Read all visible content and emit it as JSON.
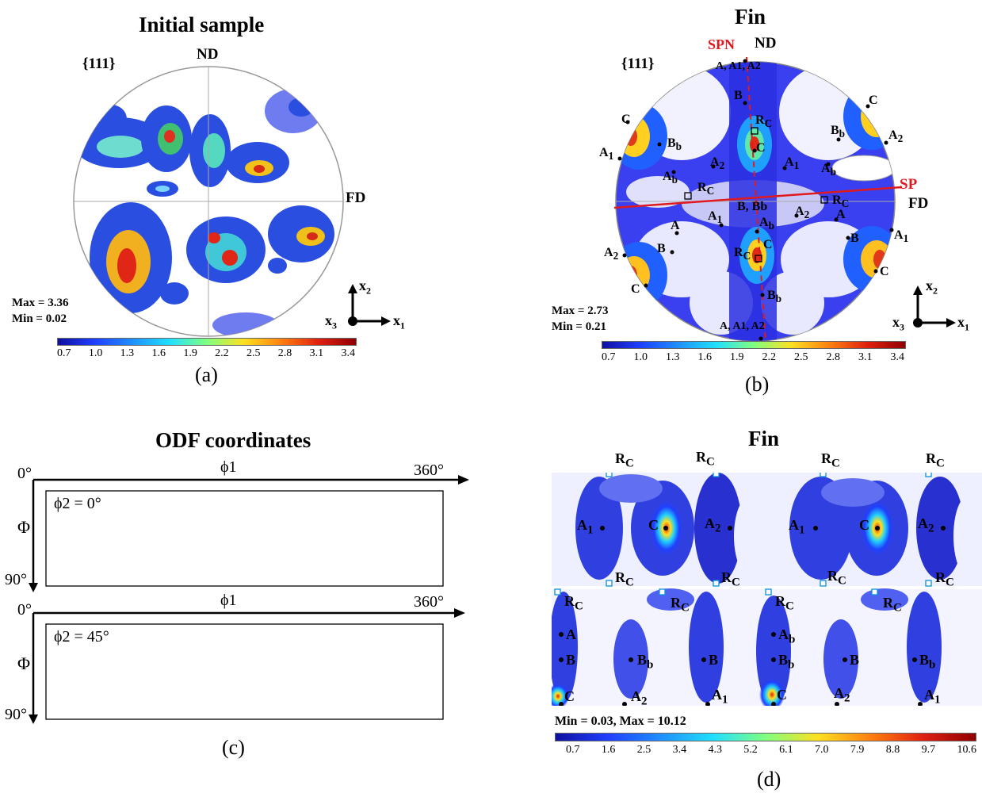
{
  "panel_a": {
    "title": "Initial sample",
    "family": "{111}",
    "nd": "ND",
    "fd": "FD",
    "max_label": "Max = 3.36",
    "min_label": "Min = 0.02",
    "caption": "(a)",
    "scale_ticks": [
      "0.7",
      "1.0",
      "1.3",
      "1.6",
      "1.9",
      "2.2",
      "2.5",
      "2.8",
      "3.1",
      "3.4"
    ],
    "axes": {
      "x2": "x",
      "x2_sub": "2",
      "x1": "x",
      "x1_sub": "1",
      "x3": "x",
      "x3_sub": "3"
    }
  },
  "panel_b": {
    "title": "Fin",
    "family": "{111}",
    "nd": "ND",
    "fd": "FD",
    "spn": "SPN",
    "sp": "SP",
    "max_label": "Max = 2.73",
    "min_label": "Min = 0.21",
    "caption": "(b)",
    "scale_ticks": [
      "0.7",
      "1.0",
      "1.3",
      "1.6",
      "1.9",
      "2.2",
      "2.5",
      "2.8",
      "3.1",
      "3.4"
    ],
    "axes": {
      "x2": "x",
      "x2_sub": "2",
      "x1": "x",
      "x1_sub": "1",
      "x3": "x",
      "x3_sub": "3"
    },
    "labels": {
      "a": "A",
      "a1": "A",
      "a2": "A",
      "ab": "A",
      "b": "B",
      "bb": "B",
      "c": "C",
      "rc": "R",
      "sub1": "1",
      "sub2": "2",
      "subb": "b",
      "subc": "C",
      "top_pair": "A, A1, A2",
      "bottom_pair": "A, A1, A2",
      "mid": "B, Bb"
    }
  },
  "panel_c": {
    "title": "ODF coordinates",
    "row1": {
      "start": "0°",
      "end": "360°",
      "phi1": "ϕ1",
      "Phi": "Φ",
      "phi2": "ϕ2 = 0°",
      "bottom": "90°"
    },
    "row2": {
      "start": "0°",
      "end": "360°",
      "phi1": "ϕ1",
      "Phi": "Φ",
      "phi2": "ϕ2 = 45°",
      "bottom": "90°"
    },
    "caption": "(c)"
  },
  "panel_d": {
    "title": "Fin",
    "minmax": "Min = 0.03, Max = 10.12",
    "caption": "(d)",
    "scale_ticks": [
      "0.7",
      "1.6",
      "2.5",
      "3.4",
      "4.3",
      "5.2",
      "6.1",
      "7.0",
      "7.9",
      "8.8",
      "9.7",
      "10.6"
    ],
    "labels": {
      "rc": "R",
      "rc_sub": "C",
      "a": "A",
      "a1": "A",
      "a2": "A",
      "ab": "A",
      "b": "B",
      "bb": "B",
      "c": "C",
      "sub1": "1",
      "sub2": "2",
      "subb": "b"
    }
  },
  "colors": {
    "jet": [
      "#00007f",
      "#0000ff",
      "#007fff",
      "#00ffff",
      "#7fff7f",
      "#ffff00",
      "#ff7f00",
      "#ff0000",
      "#7f0000"
    ],
    "accent": "#e0191f"
  }
}
